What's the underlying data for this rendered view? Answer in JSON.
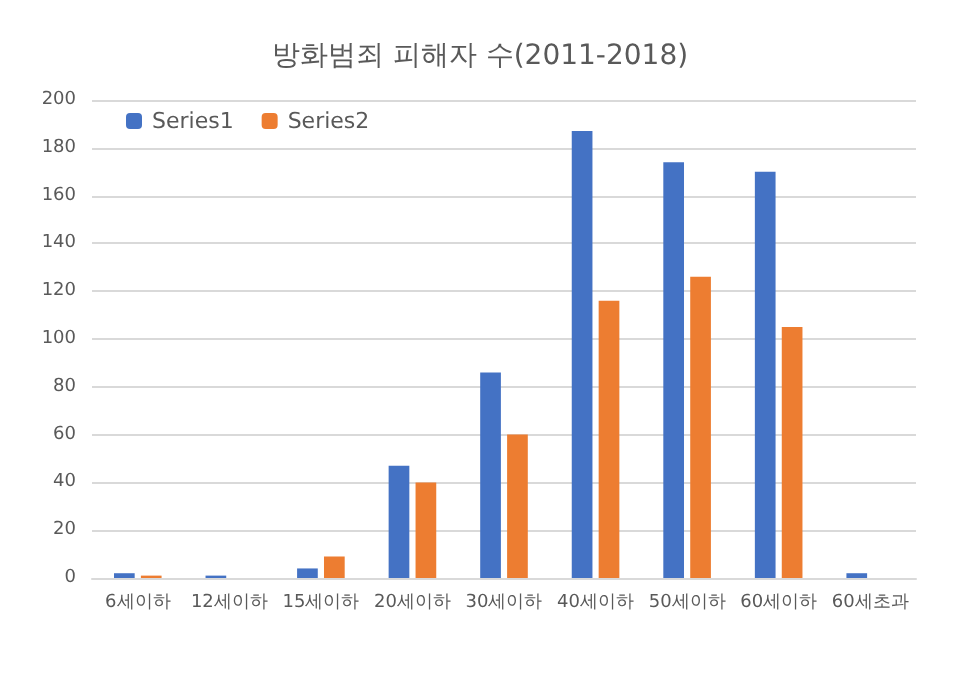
{
  "chart_data": {
    "type": "bar",
    "title": "방화범죄 피해자 수(2011-2018)",
    "categories": [
      "6세이하",
      "12세이하",
      "15세이하",
      "20세이하",
      "30세이하",
      "40세이하",
      "50세이하",
      "60세이하",
      "60세초과"
    ],
    "series": [
      {
        "name": "Series1",
        "color": "#4472c4",
        "values": [
          2,
          1,
          4,
          47,
          86,
          187,
          174,
          170,
          2
        ]
      },
      {
        "name": "Series2",
        "color": "#ed7d31",
        "values": [
          1,
          0,
          9,
          40,
          60,
          116,
          126,
          105,
          0
        ]
      }
    ],
    "ylim": [
      0,
      200
    ],
    "yticks": [
      0,
      20,
      40,
      60,
      80,
      100,
      120,
      140,
      160,
      180,
      200
    ],
    "grid": "y",
    "legend": "top left"
  }
}
